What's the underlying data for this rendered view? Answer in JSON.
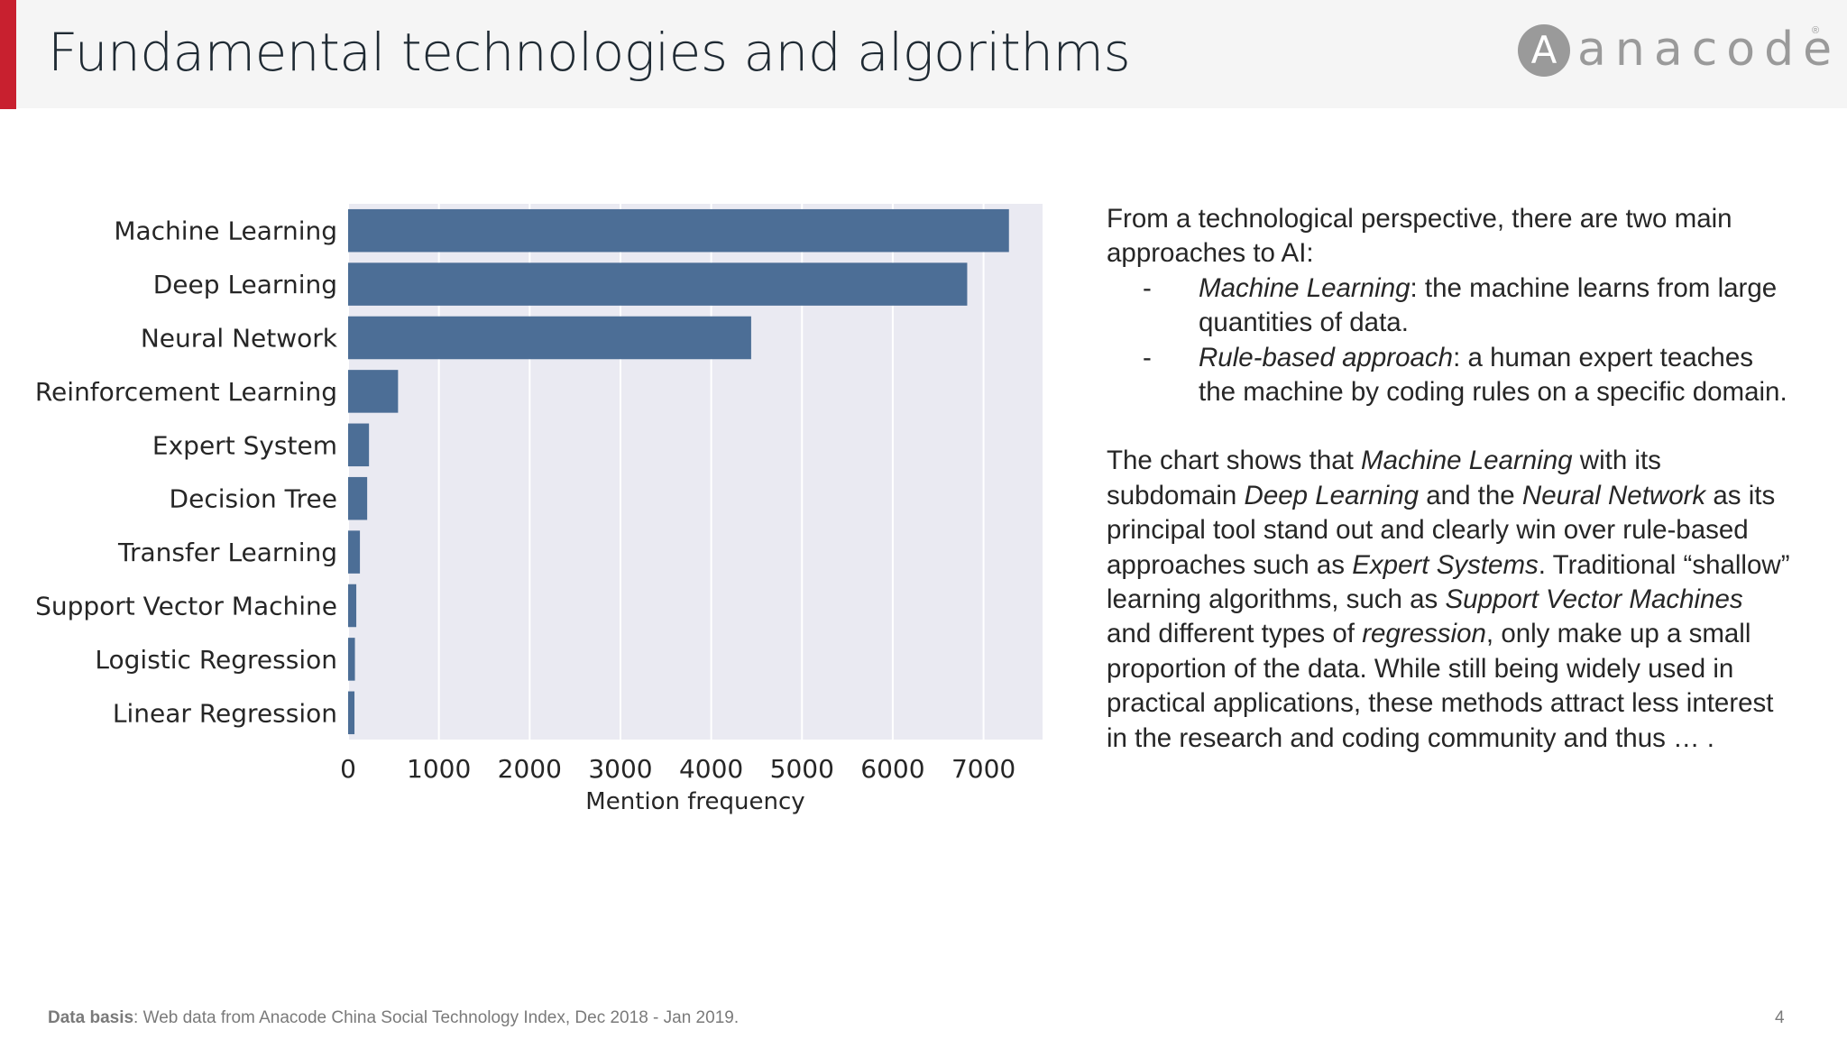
{
  "slide": {
    "title": "Fundamental technologies and algorithms",
    "logo_text": "anacode",
    "logo_mark": "®",
    "page_number": "4"
  },
  "colors": {
    "accent": "#c8202f",
    "bar": "#4c6e96",
    "plot_bg": "#eaeaf2",
    "grid": "#ffffff"
  },
  "chart_data": {
    "type": "bar",
    "orientation": "horizontal",
    "categories": [
      "Machine Learning",
      "Deep Learning",
      "Neural Network",
      "Reinforcement Learning",
      "Expert System",
      "Decision Tree",
      "Transfer Learning",
      "Support Vector Machine",
      "Logistic Regression",
      "Linear Regression"
    ],
    "values": [
      7280,
      6820,
      4440,
      550,
      230,
      210,
      130,
      90,
      75,
      70
    ],
    "xlabel": "Mention frequency",
    "xlim": [
      0,
      7650
    ],
    "xticks": [
      0,
      1000,
      2000,
      3000,
      4000,
      5000,
      6000,
      7000
    ],
    "grid": true
  },
  "text": {
    "p1": "From a technological perspective, there are two main approaches to AI:",
    "b1_dash": "-",
    "b1_em": "Machine Learning",
    "b1_rest": ": the machine learns from large quantities of data.",
    "b2_dash": "-",
    "b2_em": "Rule-based approach",
    "b2_rest": ": a human expert teaches the machine by coding rules on a specific domain.",
    "p2_a": "The chart shows that ",
    "p2_em1": "Machine Learning",
    "p2_b": " with its subdomain ",
    "p2_em2": "Deep Learning",
    "p2_c": " and the ",
    "p2_em3": "Neural Network",
    "p2_d": " as its principal tool stand out and clearly win over rule-based approaches such as ",
    "p2_em4": "Expert Systems",
    "p2_e": ". Traditional “shallow” learning algorithms, such as ",
    "p2_em5": "Support Vector Machines",
    "p2_f": " and different types of ",
    "p2_em6": "regression",
    "p2_g": ", only make up a small proportion of the data. While still being widely used in practical applications, these methods attract less interest in the research and coding community and thus … ."
  },
  "footer": {
    "label": "Data basis",
    "text": ": Web data from Anacode China Social Technology Index, Dec 2018 - Jan 2019."
  }
}
